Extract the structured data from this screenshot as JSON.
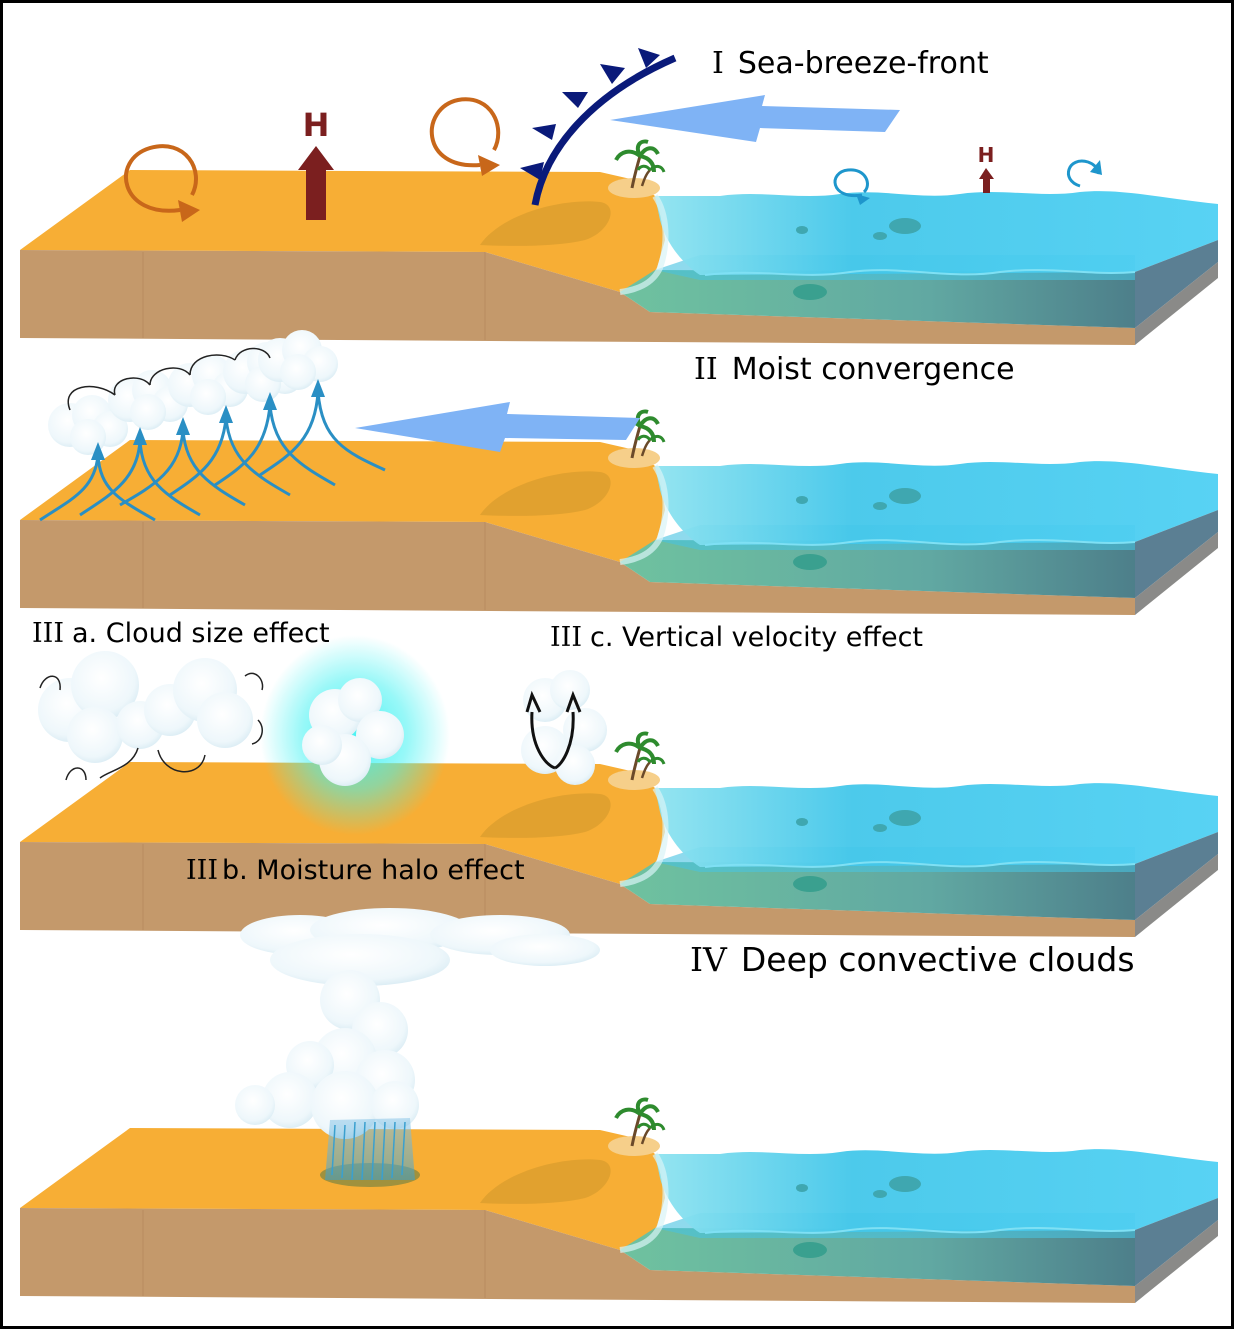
{
  "panels": {
    "p1": {
      "numeral": "I",
      "title": "Sea-breeze-front",
      "high_big": "H",
      "high_small": "H"
    },
    "p2": {
      "numeral": "II",
      "title": "Moist convergence"
    },
    "p3": {
      "a": {
        "numeral": "III",
        "title": "a. Cloud size effect"
      },
      "b": {
        "numeral": "III",
        "title": "b. Moisture halo effect"
      },
      "c": {
        "numeral": "III",
        "title": "c. Vertical velocity effect"
      }
    },
    "p4": {
      "numeral": "IV",
      "title": "Deep convective clouds"
    }
  },
  "colors": {
    "land_top": "#f7ae35",
    "land_side": "#c4996b",
    "sea_surface": "#4fd0f3",
    "sea_side": "#5fa7a3",
    "front": "#0a1a7a",
    "wind_arrow": "#7fb3f5",
    "circulation_land": "#c8671a",
    "circulation_sea": "#1e96cc",
    "high_arrow": "#7b1f1f",
    "updraft": "#2a8fc4",
    "halo": "#41f2f2"
  }
}
